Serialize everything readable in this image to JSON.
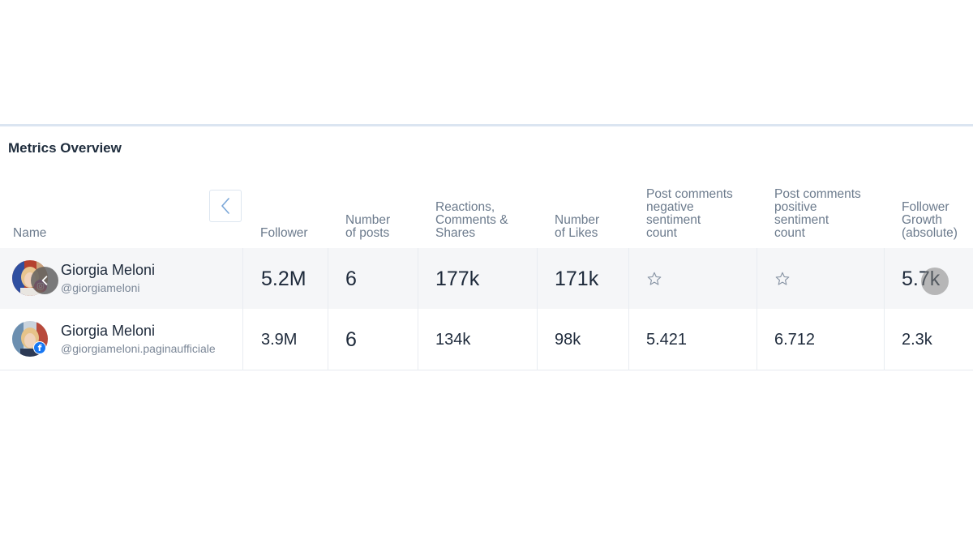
{
  "panel": {
    "title": "Metrics Overview"
  },
  "columns": [
    [
      "Name"
    ],
    [
      "Follower"
    ],
    [
      "Number",
      "of posts"
    ],
    [
      "Reactions,",
      "Comments &",
      "Shares"
    ],
    [
      "Number",
      "of Likes"
    ],
    [
      "Post comments",
      "negative",
      "sentiment",
      "count"
    ],
    [
      "Post comments",
      "positive",
      "sentiment",
      "count"
    ],
    [
      "Follower",
      "Growth",
      "(absolute)"
    ]
  ],
  "rows": [
    {
      "platform": "instagram",
      "name": "Giorgia Meloni",
      "handle": "@giorgiameloni",
      "follower": "5.2M",
      "posts": "6",
      "reactions": "177k",
      "likes": "171k",
      "negative": "star-icon",
      "positive": "star-icon",
      "growth": "5.7k"
    },
    {
      "platform": "facebook",
      "name": "Giorgia Meloni",
      "handle": "@giorgiameloni.paginaufficiale",
      "badge": "f",
      "follower": "3.9M",
      "posts": "6",
      "reactions": "134k",
      "likes": "98k",
      "negative": "5.421",
      "positive": "6.712",
      "growth": "2.3k"
    }
  ],
  "colors": {
    "accent_rule": "#dbe5f1",
    "row_highlight": "#f5f6f8",
    "header_text": "#6c7b8d",
    "facebook": "#1877f2"
  }
}
